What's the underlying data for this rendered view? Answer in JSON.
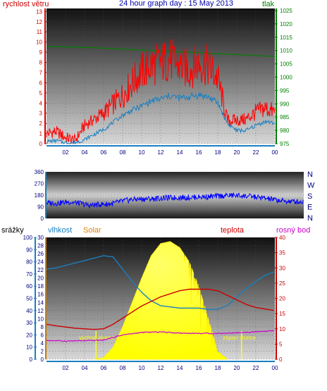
{
  "chart_data": [
    {
      "panel": "wind-pressure",
      "type": "line",
      "title": "24 hour graph day : 15 May 2013",
      "left_axis_label": "rychlost větru",
      "right_axis_label": "tlak",
      "left_ticks": [
        "0",
        "1",
        "2",
        "3",
        "4",
        "5",
        "6",
        "7",
        "8",
        "9",
        "10",
        "11",
        "12",
        "13"
      ],
      "left_range": [
        0,
        13.3
      ],
      "right_ticks": [
        "975",
        "980",
        "985",
        "990",
        "995",
        "1000",
        "1005",
        "1010",
        "1015",
        "1020",
        "1025"
      ],
      "right_range": [
        975,
        1025.8
      ],
      "x_ticks": [
        "02",
        "04",
        "06",
        "08",
        "10",
        "12",
        "14",
        "16",
        "18",
        "20",
        "22",
        "00"
      ],
      "x_range": [
        0,
        24
      ],
      "series": [
        {
          "color": "#ff0000",
          "x": [
            0,
            1,
            2,
            3,
            4,
            5,
            6,
            7,
            8,
            9,
            10,
            11,
            12,
            13,
            14,
            15,
            16,
            17,
            18,
            19,
            20,
            21,
            22,
            23,
            24
          ],
          "values": [
            1.0,
            1.2,
            0.6,
            0.3,
            1.8,
            2.4,
            3.0,
            3.9,
            4.8,
            6.0,
            7.1,
            7.7,
            8.0,
            8.3,
            7.6,
            7.3,
            8.0,
            7.6,
            6.4,
            2.3,
            2.3,
            2.4,
            3.1,
            3.5,
            3.1
          ]
        },
        {
          "color": "#1a7fc1",
          "x": [
            0,
            1,
            2,
            3,
            4,
            5,
            6,
            7,
            8,
            9,
            10,
            11,
            12,
            13,
            14,
            15,
            16,
            17,
            18,
            19,
            20,
            21,
            22,
            23,
            24
          ],
          "values": [
            0.2,
            0.3,
            0.1,
            0.1,
            0.4,
            0.9,
            1.4,
            2.1,
            2.8,
            3.3,
            3.7,
            4.2,
            4.4,
            4.7,
            4.5,
            4.6,
            4.8,
            4.6,
            4.0,
            2.0,
            1.3,
            1.3,
            1.8,
            2.2,
            2.0
          ]
        },
        {
          "color": "#008000",
          "axis": "right",
          "x": [
            0,
            2,
            4,
            6,
            8,
            10,
            12,
            14,
            16,
            18,
            20,
            22,
            24
          ],
          "values": [
            1011.5,
            1011.4,
            1011.2,
            1010.9,
            1010.5,
            1010.2,
            1009.8,
            1009.5,
            1009.2,
            1008.8,
            1008.5,
            1008.1,
            1007.8
          ]
        }
      ]
    },
    {
      "panel": "wind-direction",
      "type": "line",
      "left_ticks": [
        "0",
        "90",
        "180",
        "270",
        "360"
      ],
      "left_range": [
        0,
        360
      ],
      "right_ticks": [
        "N",
        "E",
        "S",
        "W",
        "N"
      ],
      "x_range": [
        0,
        24
      ],
      "series": [
        {
          "color": "#0000ff",
          "x": [
            0,
            1,
            2,
            3,
            4,
            5,
            6,
            7,
            8,
            9,
            10,
            11,
            12,
            13,
            14,
            15,
            16,
            17,
            18,
            19,
            20,
            21,
            22,
            23,
            24
          ],
          "values": [
            120,
            118,
            128,
            118,
            100,
            108,
            112,
            132,
            148,
            150,
            152,
            158,
            160,
            162,
            165,
            168,
            172,
            178,
            176,
            170,
            160,
            148,
            135,
            130,
            128
          ]
        }
      ]
    },
    {
      "panel": "rain-humidity-solar-temperature",
      "type": "line",
      "labels": {
        "rain": "srážky",
        "humidity": "vlhkost",
        "solar": "Solar",
        "temperature": "teplota",
        "dewpoint": "rosný bod"
      },
      "colors": {
        "rain": "#0000ff",
        "humidity": "#1a7fc1",
        "solar": "#ffff00",
        "temperature": "#cc0000",
        "dewpoint": "#cc00cc"
      },
      "rain_ticks": [
        "0",
        "10",
        "20",
        "30",
        "40",
        "50",
        "60",
        "70",
        "80",
        "90",
        "100"
      ],
      "solar_ticks": [
        "0",
        "2",
        "4",
        "6",
        "8",
        "10",
        "12",
        "14",
        "16",
        "18",
        "20",
        "22",
        "24",
        "26",
        "28",
        "30"
      ],
      "temperature_ticks": [
        "0",
        "5",
        "10",
        "15",
        "20",
        "25",
        "30",
        "35",
        "40"
      ],
      "humidity_range": [
        0,
        100
      ],
      "temperature_range": [
        0,
        40
      ],
      "annotations": [
        "východ slunce",
        "západ slunce"
      ],
      "x_ticks": [
        "02",
        "04",
        "06",
        "08",
        "10",
        "12",
        "14",
        "16",
        "18",
        "20",
        "22",
        "00"
      ],
      "series": [
        {
          "name": "vlhkost",
          "x": [
            0,
            1,
            2,
            3,
            4,
            5,
            6,
            7,
            8,
            9,
            10,
            11,
            12,
            13,
            14,
            15,
            16,
            17,
            18,
            19,
            20,
            21,
            22,
            23,
            24
          ],
          "values": [
            74,
            75,
            77,
            79,
            81,
            83,
            85,
            84,
            74,
            64,
            55,
            48,
            44,
            43,
            42,
            42,
            42,
            41,
            41,
            44,
            51,
            58,
            64,
            69,
            72
          ]
        },
        {
          "name": "teplota",
          "x": [
            0,
            1,
            2,
            3,
            4,
            5,
            6,
            7,
            8,
            9,
            10,
            11,
            12,
            13,
            14,
            15,
            16,
            17,
            18,
            19,
            20,
            21,
            22,
            23,
            24
          ],
          "values": [
            11.5,
            11.0,
            10.6,
            10.2,
            10.0,
            9.8,
            10.0,
            11.5,
            13.5,
            15.5,
            17.5,
            19.0,
            20.5,
            21.5,
            22.5,
            23.0,
            23.0,
            23.0,
            22.5,
            21.0,
            19.5,
            18.0,
            17.0,
            16.5,
            16.0
          ]
        },
        {
          "name": "rosný bod",
          "x": [
            0,
            2,
            4,
            6,
            8,
            10,
            12,
            14,
            16,
            18,
            20,
            22,
            24
          ],
          "values": [
            6.2,
            6.0,
            6.1,
            6.3,
            8.0,
            8.8,
            9.0,
            8.6,
            8.5,
            8.5,
            8.7,
            9.0,
            9.4
          ]
        },
        {
          "name": "Solar",
          "x": [
            5,
            6,
            7,
            8,
            9,
            10,
            11,
            12,
            13,
            14,
            15,
            16,
            17,
            17.5,
            18,
            19
          ],
          "values": [
            0,
            0.4,
            3,
            8,
            14,
            20,
            25.5,
            28.5,
            29,
            27.5,
            24,
            18,
            10,
            6,
            2,
            0
          ]
        }
      ]
    }
  ]
}
